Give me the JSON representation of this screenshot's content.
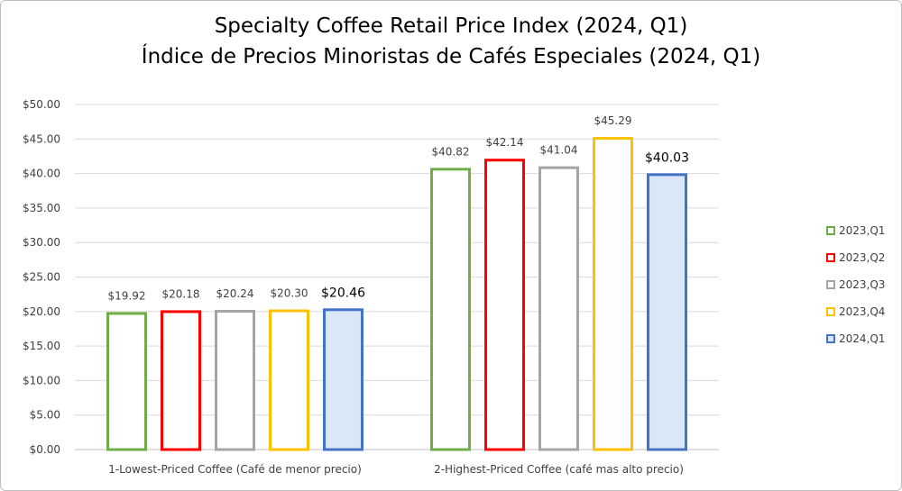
{
  "chart_data": {
    "type": "bar",
    "title": "Specialty Coffee Retail Price Index (2024, Q1)",
    "subtitle": "Índice de Precios Minoristas de Cafés Especiales (2024, Q1)",
    "categories": [
      "1-Lowest-Priced Coffee (Café de menor precio)",
      "2-Highest-Priced Coffee (café mas alto precio)"
    ],
    "series": [
      {
        "name": "2023,Q1",
        "color": "#70ad47",
        "fill": "none",
        "values": [
          19.92,
          40.82
        ],
        "labels": [
          "$19.92",
          "$40.82"
        ]
      },
      {
        "name": "2023,Q2",
        "color": "#ff0000",
        "fill": "none",
        "values": [
          20.18,
          42.14
        ],
        "labels": [
          "$20.18",
          "$42.14"
        ]
      },
      {
        "name": "2023,Q3",
        "color": "#a5a5a5",
        "fill": "none",
        "values": [
          20.24,
          41.04
        ],
        "labels": [
          "$20.24",
          "$41.04"
        ]
      },
      {
        "name": "2023,Q4",
        "color": "#ffc000",
        "fill": "none",
        "values": [
          20.3,
          45.29
        ],
        "labels": [
          "$20.30",
          "$45.29"
        ]
      },
      {
        "name": "2024,Q1",
        "color": "#4472c4",
        "fill": "#dae7f7",
        "values": [
          20.46,
          40.03
        ],
        "labels": [
          "$20.46",
          "$40.03"
        ],
        "emphasized_labels": true
      }
    ],
    "ylim": [
      0,
      50
    ],
    "yticks": [
      0,
      5,
      10,
      15,
      20,
      25,
      30,
      35,
      40,
      45,
      50
    ],
    "ytick_labels": [
      "$0.00",
      "$5.00",
      "$10.00",
      "$15.00",
      "$20.00",
      "$25.00",
      "$30.00",
      "$35.00",
      "$40.00",
      "$45.00",
      "$50.00"
    ],
    "grid": true,
    "legend_position": "right"
  }
}
